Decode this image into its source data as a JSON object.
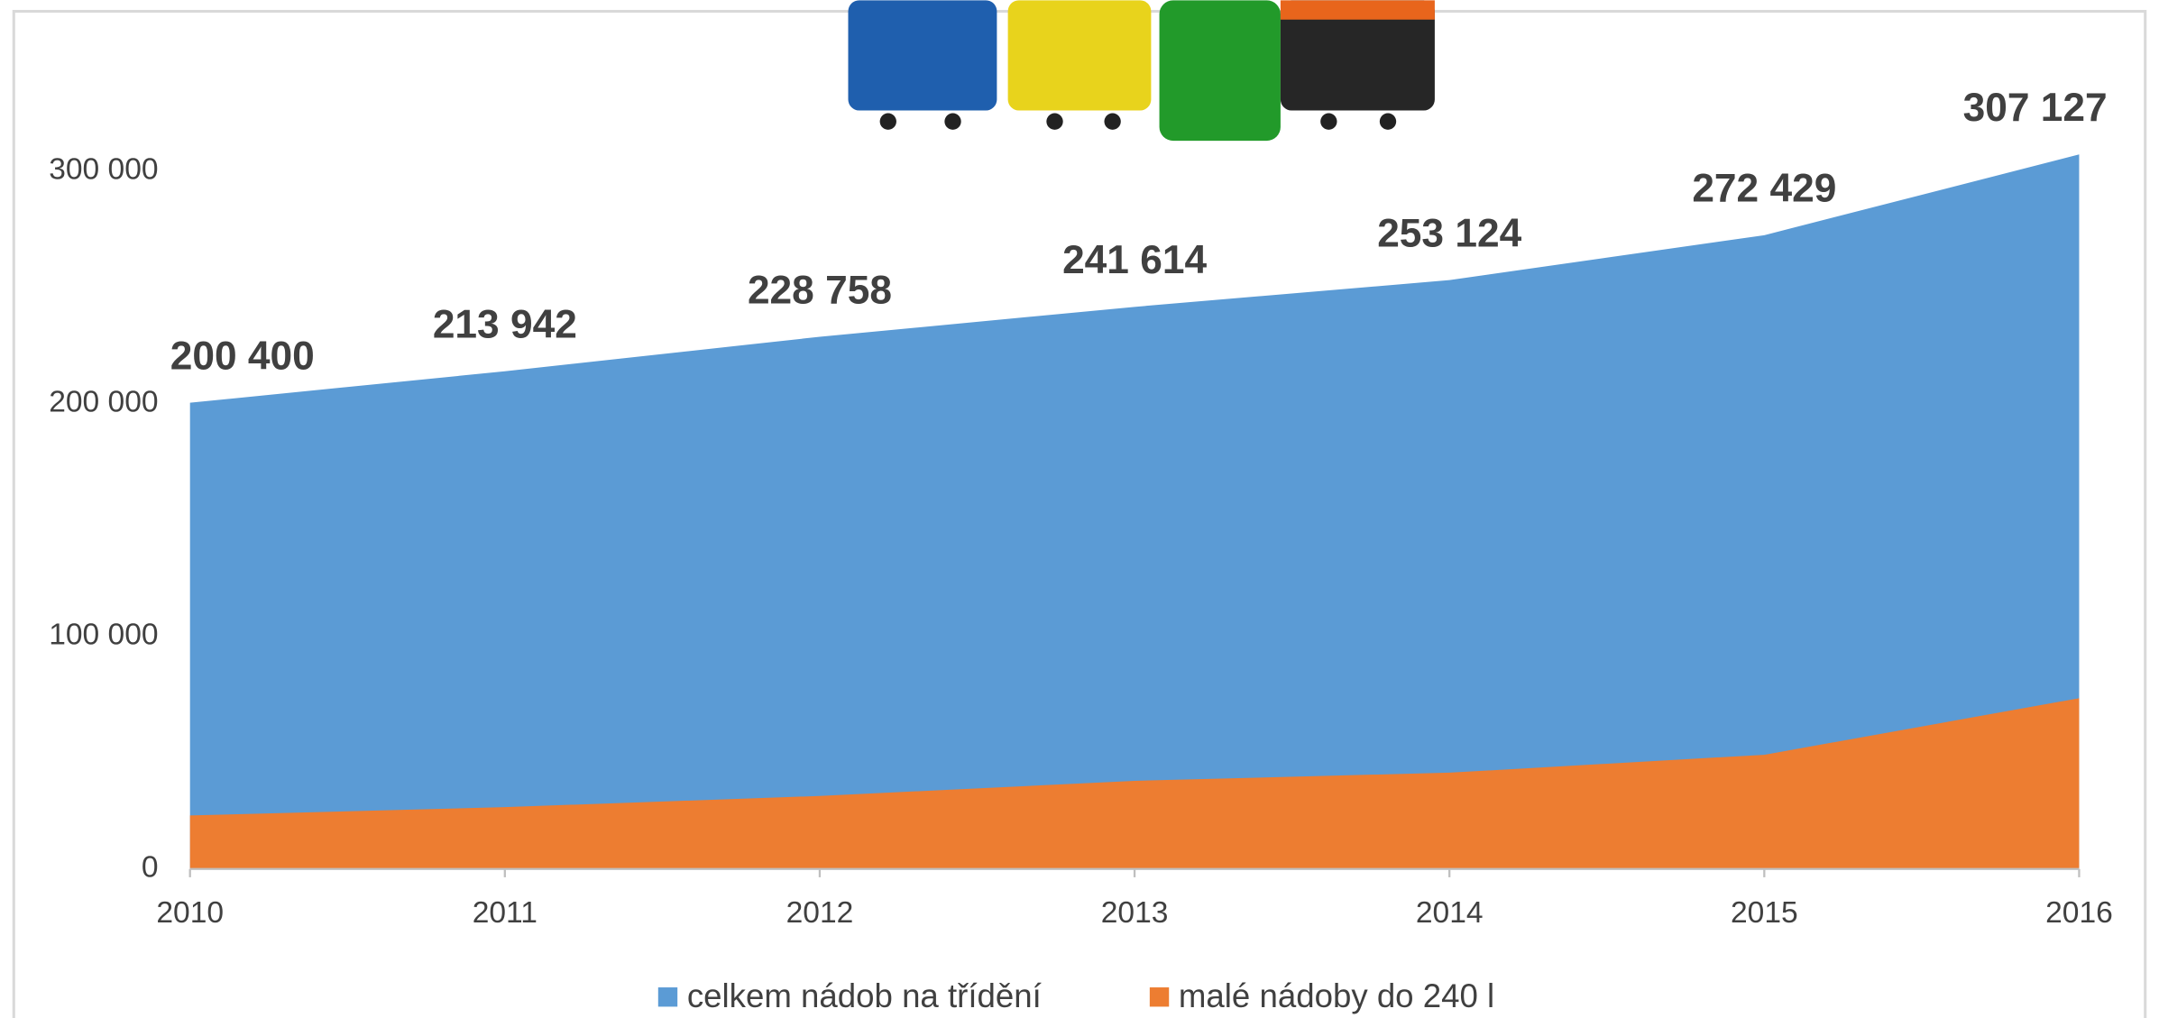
{
  "chart_data": {
    "type": "area",
    "categories": [
      "2010",
      "2011",
      "2012",
      "2013",
      "2014",
      "2015",
      "2016"
    ],
    "series": [
      {
        "name": "celkem nádob na třídění",
        "color": "#5b9bd5",
        "values": [
          200400,
          213942,
          228758,
          241614,
          253124,
          272429,
          307127
        ],
        "value_labels": [
          "200 400",
          "213 942",
          "228 758",
          "241 614",
          "253 124",
          "272 429",
          "307 127"
        ]
      },
      {
        "name": "malé nádoby do 240 l",
        "color": "#ed7d31",
        "values": [
          23000,
          26600,
          31400,
          37900,
          41400,
          49100,
          73400
        ]
      }
    ],
    "ylim": [
      0,
      350000
    ],
    "yticks": [
      0,
      {
        "value": 100000,
        "label": "100 000"
      },
      {
        "value": 200000,
        "label": "200 000"
      },
      {
        "value": 300000,
        "label": "300 000"
      }
    ],
    "legend": "bottom"
  }
}
